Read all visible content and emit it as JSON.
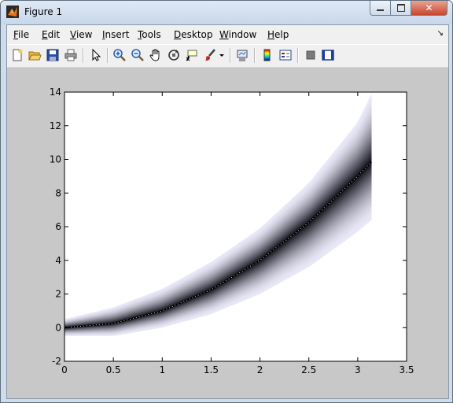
{
  "window": {
    "title": "Figure 1"
  },
  "caption_buttons": {
    "minimize": "▭",
    "maximize": "◻",
    "close": "✕"
  },
  "menu": [
    {
      "pre": "",
      "u": "F",
      "post": "ile"
    },
    {
      "pre": "",
      "u": "E",
      "post": "dit"
    },
    {
      "pre": "",
      "u": "V",
      "post": "iew"
    },
    {
      "pre": "",
      "u": "I",
      "post": "nsert"
    },
    {
      "pre": "",
      "u": "T",
      "post": "ools"
    },
    {
      "pre": "",
      "u": "D",
      "post": "esktop"
    },
    {
      "pre": "",
      "u": "W",
      "post": "indow"
    },
    {
      "pre": "",
      "u": "H",
      "post": "elp"
    }
  ],
  "toolbar": [
    "new-figure-icon",
    "open-file-icon",
    "save-icon",
    "print-icon",
    "edit-plot-arrow-icon",
    "zoom-in-icon",
    "zoom-out-icon",
    "pan-hand-icon",
    "rotate-3d-icon",
    "data-cursor-icon",
    "brush-icon",
    "brush-dropdown-icon",
    "link-plot-icon",
    "colorbar-icon",
    "legend-icon",
    "hide-plot-tools-icon",
    "show-plot-tools-icon"
  ],
  "chart_data": {
    "type": "line",
    "title": "",
    "xlabel": "",
    "ylabel": "",
    "xlim": [
      0,
      3.5
    ],
    "ylim": [
      -2,
      14
    ],
    "xticks": [
      "0",
      "0.5",
      "1",
      "1.5",
      "2",
      "2.5",
      "3",
      "3.5"
    ],
    "yticks": [
      "-2",
      "0",
      "2",
      "4",
      "6",
      "8",
      "10",
      "12",
      "14"
    ],
    "x_range": [
      0,
      3.1416
    ],
    "center_curve": {
      "x": [
        0,
        0.5,
        1,
        1.5,
        2,
        2.5,
        3,
        3.1416
      ],
      "y": [
        0,
        0.25,
        1.0,
        2.25,
        4.0,
        6.25,
        9.0,
        9.87
      ]
    },
    "band_upper": {
      "x": [
        0,
        0.5,
        1,
        1.5,
        2,
        2.5,
        3,
        3.1416
      ],
      "y": [
        0.5,
        1.2,
        2.3,
        3.9,
        5.9,
        8.6,
        12.2,
        13.9
      ]
    },
    "band_lower": {
      "x": [
        0,
        0.5,
        1,
        1.5,
        2,
        2.5,
        3,
        3.1416
      ],
      "y": [
        -0.5,
        -0.5,
        0.0,
        0.8,
        2.0,
        3.6,
        5.7,
        6.4
      ]
    },
    "colors": {
      "band_edge": "#e8e8f8",
      "band_center": "#000000",
      "axes_bg": "#ffffff",
      "figure_bg": "#c8c8c8"
    }
  }
}
